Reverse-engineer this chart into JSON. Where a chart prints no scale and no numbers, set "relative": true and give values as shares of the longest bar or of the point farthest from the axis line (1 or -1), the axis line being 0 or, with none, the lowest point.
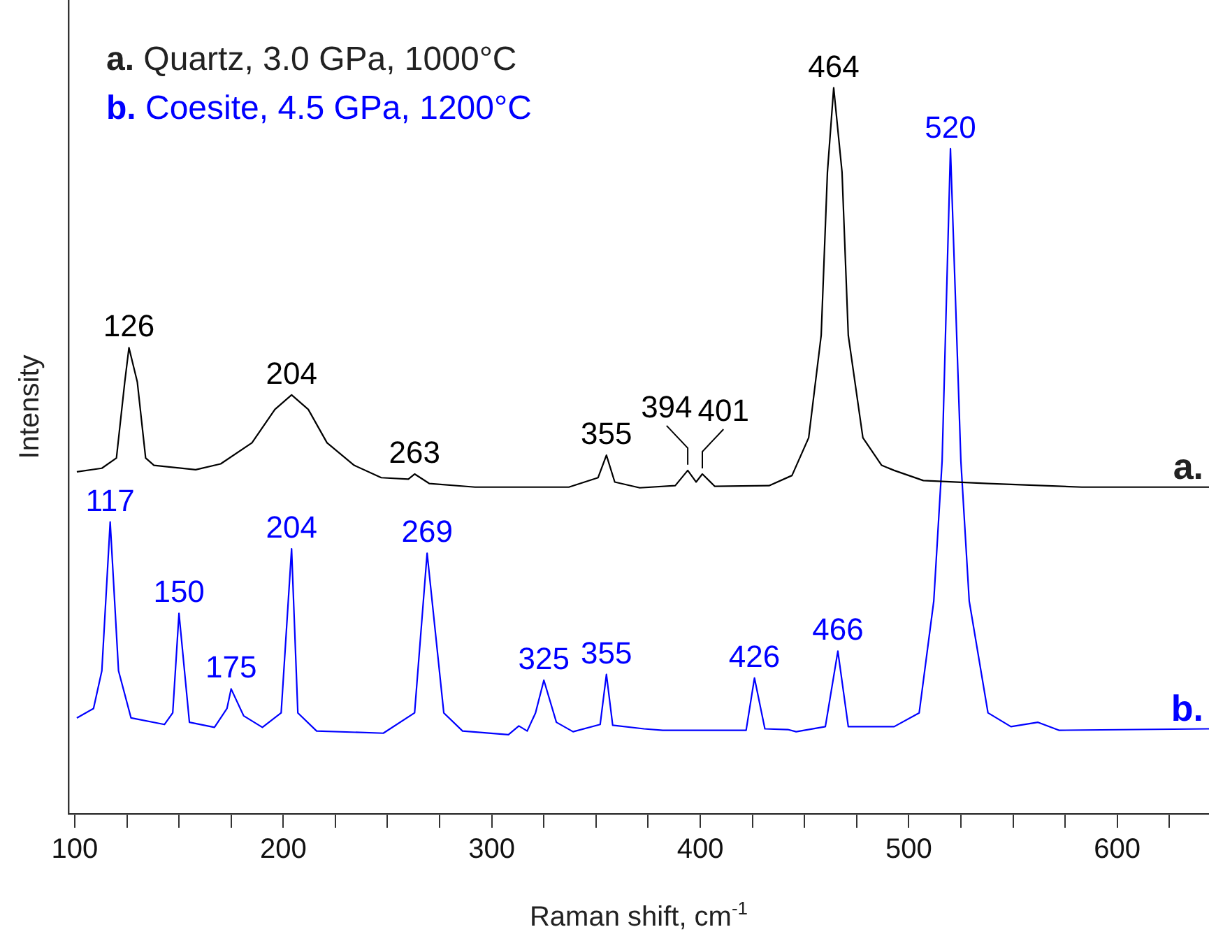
{
  "chart_data": {
    "type": "line",
    "relative": true,
    "xlabel": "Raman shift, cm$^{-1}$",
    "ylabel": "Intensity",
    "xlim": [
      97,
      644
    ],
    "xticks": [
      100,
      {
        "value": 125,
        "label": null
      },
      {
        "value": 150,
        "label": null
      },
      {
        "value": 175,
        "label": null
      },
      200,
      {
        "value": 225,
        "label": null
      },
      {
        "value": 250,
        "label": null
      },
      {
        "value": 275,
        "label": null
      },
      300,
      {
        "value": 325,
        "label": null
      },
      {
        "value": 350,
        "label": null
      },
      {
        "value": 375,
        "label": null
      },
      400,
      {
        "value": 425,
        "label": null
      },
      {
        "value": 450,
        "label": null
      },
      {
        "value": 475,
        "label": null
      },
      500,
      {
        "value": 525,
        "label": null
      },
      {
        "value": 550,
        "label": null
      },
      {
        "value": 575,
        "label": null
      },
      600,
      {
        "value": 625,
        "label": null
      }
    ],
    "legend": false,
    "grid": false,
    "marker": "none",
    "line_style": "solid",
    "series": [
      {
        "name": "a.",
        "color": "#000000",
        "x": [
          101,
          113,
          120,
          124,
          126,
          130,
          134,
          138,
          158,
          170,
          185,
          196,
          204,
          212,
          221,
          234,
          247,
          260,
          263,
          270,
          292,
          337,
          351,
          355,
          359,
          371,
          388,
          394,
          398,
          401,
          407,
          433,
          444,
          452,
          458,
          461,
          464,
          468,
          471,
          478,
          487,
          493,
          507,
          538,
          583,
          644
        ],
        "values": [
          0.471,
          0.476,
          0.49,
          0.595,
          0.642,
          0.595,
          0.49,
          0.48,
          0.474,
          0.482,
          0.511,
          0.557,
          0.577,
          0.557,
          0.511,
          0.48,
          0.463,
          0.461,
          0.468,
          0.455,
          0.45,
          0.45,
          0.463,
          0.494,
          0.457,
          0.449,
          0.452,
          0.473,
          0.457,
          0.468,
          0.451,
          0.452,
          0.466,
          0.518,
          0.659,
          0.884,
          1.0,
          0.884,
          0.659,
          0.518,
          0.48,
          0.473,
          0.459,
          0.455,
          0.45,
          0.45
        ]
      },
      {
        "name": "b.",
        "color": "#0000ff",
        "x": [
          101,
          109,
          113,
          117,
          121,
          127,
          143,
          147,
          150,
          155,
          167,
          173,
          175,
          181,
          190,
          199,
          204,
          207,
          216,
          248,
          263,
          269,
          277,
          286,
          308,
          313,
          317,
          321,
          325,
          331,
          339,
          352,
          355,
          358,
          373,
          382,
          422,
          426,
          431,
          442,
          446,
          460,
          466,
          471,
          493,
          505,
          512,
          516,
          520,
          525,
          529,
          538,
          549,
          562,
          572,
          644
        ],
        "values": [
          0.132,
          0.145,
          0.197,
          0.402,
          0.197,
          0.132,
          0.123,
          0.139,
          0.276,
          0.126,
          0.119,
          0.145,
          0.172,
          0.135,
          0.119,
          0.139,
          0.365,
          0.139,
          0.114,
          0.111,
          0.139,
          0.359,
          0.139,
          0.114,
          0.109,
          0.121,
          0.114,
          0.139,
          0.184,
          0.126,
          0.113,
          0.123,
          0.192,
          0.122,
          0.117,
          0.115,
          0.115,
          0.187,
          0.117,
          0.116,
          0.113,
          0.12,
          0.224,
          0.12,
          0.12,
          0.139,
          0.293,
          0.486,
          0.916,
          0.486,
          0.293,
          0.139,
          0.12,
          0.126,
          0.115,
          0.117
        ]
      }
    ],
    "annotations": [
      "a. Quartz, 3.0 GPa, 1000°C",
      "b. Coesite, 4.5 GPa, 1200°C",
      {
        "text": "126",
        "x": 126,
        "y": 0.642
      },
      {
        "text": "204",
        "x": 204,
        "y": 0.577
      },
      {
        "text": "263",
        "x": 263,
        "y": 0.468
      },
      {
        "text": "355",
        "x": 355,
        "y": 0.494
      },
      {
        "text": "394",
        "x": 394,
        "y": 0.473
      },
      {
        "text": "401",
        "x": 401,
        "y": 0.468
      },
      {
        "text": "464",
        "x": 464,
        "y": 1.0
      },
      {
        "text": "117",
        "x": 117,
        "y": 0.402
      },
      {
        "text": "150",
        "x": 150,
        "y": 0.276
      },
      {
        "text": "175",
        "x": 175,
        "y": 0.172
      },
      {
        "text": "204",
        "x": 204,
        "y": 0.365
      },
      {
        "text": "269",
        "x": 269,
        "y": 0.359
      },
      {
        "text": "325",
        "x": 325,
        "y": 0.184
      },
      {
        "text": "355",
        "x": 355,
        "y": 0.192
      },
      {
        "text": "426",
        "x": 426,
        "y": 0.187
      },
      {
        "text": "466",
        "x": 466,
        "y": 0.224
      },
      {
        "text": "520",
        "x": 520,
        "y": 0.916
      }
    ]
  }
}
